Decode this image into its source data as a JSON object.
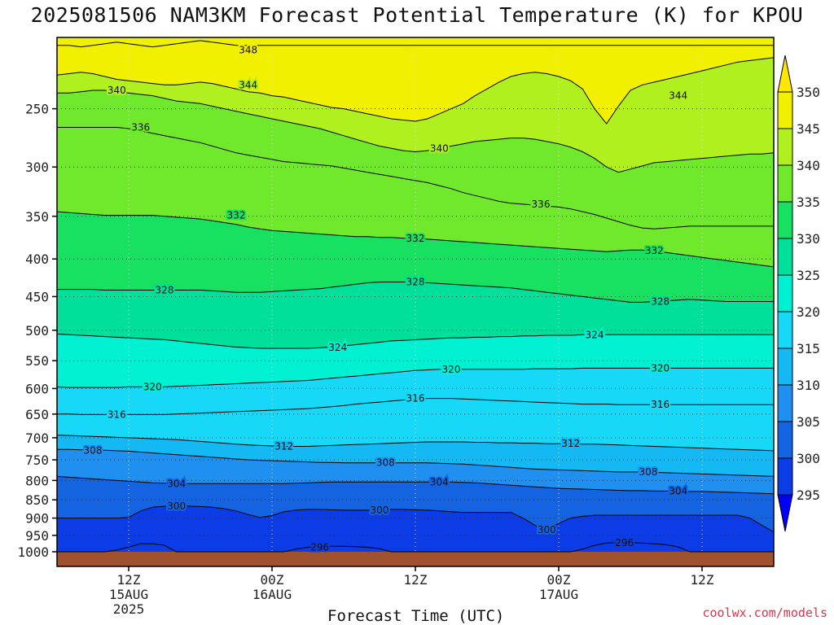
{
  "header": {
    "title": "2025081506 NAM3KM Forecast Potential Temperature (K) for KPOU"
  },
  "footer": {
    "credit": "coolwx.com/models"
  },
  "chart_data": {
    "type": "heatmap",
    "title": "2025081506 NAM3KM Forecast Potential Temperature (K) for KPOU",
    "xlabel": "Forecast Time (UTC)",
    "ylabel": "",
    "y_axis": {
      "scale": "log-pressure",
      "inverted": true,
      "range": [
        1000,
        200
      ],
      "ticks": [
        250,
        300,
        350,
        400,
        450,
        500,
        550,
        600,
        650,
        700,
        750,
        800,
        850,
        900,
        950,
        1000
      ]
    },
    "x_axis": {
      "range_hours": [
        0,
        60
      ],
      "ticks": [
        {
          "hour": 6,
          "label": "12Z",
          "sub1": "15AUG",
          "sub2": "2025"
        },
        {
          "hour": 18,
          "label": "00Z",
          "sub1": "16AUG",
          "sub2": ""
        },
        {
          "hour": 30,
          "label": "12Z",
          "sub1": "",
          "sub2": ""
        },
        {
          "hour": 42,
          "label": "00Z",
          "sub1": "17AUG",
          "sub2": ""
        },
        {
          "hour": 54,
          "label": "12Z",
          "sub1": "",
          "sub2": ""
        }
      ]
    },
    "colorbar": {
      "levels": [
        295,
        300,
        305,
        310,
        315,
        320,
        325,
        330,
        335,
        340,
        345,
        350
      ],
      "colors": [
        "#0000ff",
        "#0b3ce6",
        "#1464e2",
        "#1f8ff0",
        "#14b8f2",
        "#18d8f8",
        "#00f0d2",
        "#00e09a",
        "#18e060",
        "#70e82c",
        "#b0f01e",
        "#f0f000",
        "#ffe800"
      ]
    },
    "contour_labels": [
      {
        "value": 348,
        "hour": 16,
        "p": 208
      },
      {
        "value": 344,
        "hour": 16,
        "p": 232
      },
      {
        "value": 344,
        "hour": 52,
        "p": 240
      },
      {
        "value": 340,
        "hour": 5,
        "p": 236
      },
      {
        "value": 340,
        "hour": 32,
        "p": 283
      },
      {
        "value": 336,
        "hour": 7,
        "p": 265
      },
      {
        "value": 336,
        "hour": 40.5,
        "p": 337
      },
      {
        "value": 332,
        "hour": 15,
        "p": 349
      },
      {
        "value": 332,
        "hour": 30,
        "p": 375
      },
      {
        "value": 332,
        "hour": 50,
        "p": 390
      },
      {
        "value": 328,
        "hour": 9,
        "p": 441
      },
      {
        "value": 328,
        "hour": 30,
        "p": 430
      },
      {
        "value": 328,
        "hour": 50.5,
        "p": 457
      },
      {
        "value": 324,
        "hour": 23.5,
        "p": 528
      },
      {
        "value": 324,
        "hour": 45,
        "p": 507
      },
      {
        "value": 320,
        "hour": 8,
        "p": 597
      },
      {
        "value": 320,
        "hour": 33,
        "p": 565
      },
      {
        "value": 320,
        "hour": 50.5,
        "p": 563
      },
      {
        "value": 316,
        "hour": 5,
        "p": 651
      },
      {
        "value": 316,
        "hour": 30,
        "p": 619
      },
      {
        "value": 316,
        "hour": 50.5,
        "p": 631
      },
      {
        "value": 312,
        "hour": 19,
        "p": 719
      },
      {
        "value": 312,
        "hour": 43,
        "p": 713
      },
      {
        "value": 308,
        "hour": 3,
        "p": 728
      },
      {
        "value": 308,
        "hour": 27.5,
        "p": 757
      },
      {
        "value": 308,
        "hour": 49.5,
        "p": 779
      },
      {
        "value": 304,
        "hour": 10,
        "p": 808
      },
      {
        "value": 304,
        "hour": 32,
        "p": 804
      },
      {
        "value": 304,
        "hour": 52,
        "p": 827
      },
      {
        "value": 300,
        "hour": 10,
        "p": 867
      },
      {
        "value": 300,
        "hour": 27,
        "p": 878
      },
      {
        "value": 300,
        "hour": 41,
        "p": 933
      },
      {
        "value": 296,
        "hour": 22,
        "p": 986
      },
      {
        "value": 296,
        "hour": 47.5,
        "p": 972
      }
    ],
    "isotherm_profiles": [
      {
        "value": 348,
        "p": [
          205,
          205,
          206,
          205,
          204,
          203,
          204,
          205,
          206,
          205,
          204,
          203,
          202,
          203,
          204,
          205,
          205,
          205,
          205,
          205,
          205,
          205,
          205,
          205,
          205,
          205,
          205,
          205,
          205,
          205,
          205,
          205,
          205,
          205,
          205,
          205,
          205,
          205,
          205,
          205,
          205,
          205,
          205,
          205,
          205,
          205,
          205,
          205,
          205,
          205,
          205,
          205,
          205,
          205,
          205,
          205,
          205,
          205,
          205,
          205,
          205
        ]
      },
      {
        "value": 344,
        "p": [
          225,
          224,
          223,
          224,
          226,
          228,
          229,
          230,
          231,
          232,
          232,
          231,
          230,
          231,
          233,
          235,
          237,
          238,
          240,
          241,
          243,
          245,
          247,
          249,
          250,
          252,
          254,
          256,
          258,
          259,
          260,
          258,
          254,
          250,
          246,
          240,
          235,
          230,
          226,
          224,
          223,
          224,
          226,
          229,
          235,
          250,
          262,
          248,
          236,
          232,
          230,
          228,
          226,
          224,
          222,
          220,
          218,
          216,
          215,
          214,
          213
        ]
      },
      {
        "value": 340,
        "p": [
          238,
          238,
          237,
          236,
          236,
          237,
          238,
          239,
          240,
          242,
          244,
          245,
          246,
          248,
          250,
          252,
          254,
          256,
          258,
          260,
          262,
          264,
          266,
          269,
          272,
          275,
          278,
          281,
          283,
          285,
          286,
          285,
          283,
          281,
          279,
          277,
          276,
          275,
          274,
          274,
          275,
          277,
          279,
          282,
          286,
          292,
          300,
          305,
          302,
          299,
          296,
          295,
          294,
          293,
          292,
          291,
          290,
          289,
          288,
          288,
          287
        ]
      },
      {
        "value": 336,
        "p": [
          265,
          265,
          265,
          265,
          265,
          265,
          266,
          268,
          270,
          272,
          274,
          276,
          278,
          281,
          284,
          287,
          289,
          291,
          293,
          295,
          296,
          297,
          298,
          299,
          301,
          303,
          305,
          307,
          309,
          311,
          313,
          315,
          318,
          321,
          325,
          328,
          331,
          334,
          336,
          337,
          338,
          339,
          340,
          342,
          345,
          348,
          352,
          356,
          360,
          363,
          364,
          363,
          362,
          361,
          361,
          361,
          361,
          361,
          361,
          361,
          361
        ]
      },
      {
        "value": 332,
        "p": [
          345,
          346,
          347,
          348,
          349,
          349,
          349,
          349,
          349,
          350,
          351,
          352,
          353,
          355,
          357,
          359,
          362,
          364,
          366,
          367,
          368,
          369,
          370,
          371,
          372,
          373,
          373,
          374,
          374,
          375,
          375,
          376,
          377,
          378,
          379,
          380,
          381,
          382,
          383,
          384,
          385,
          386,
          387,
          388,
          389,
          390,
          391,
          390,
          389,
          389,
          390,
          392,
          394,
          396,
          398,
          400,
          402,
          404,
          406,
          408,
          410
        ]
      },
      {
        "value": 328,
        "p": [
          440,
          440,
          440,
          440,
          441,
          441,
          441,
          441,
          441,
          441,
          441,
          441,
          441,
          442,
          443,
          444,
          444,
          444,
          443,
          442,
          441,
          440,
          439,
          437,
          435,
          433,
          431,
          430,
          430,
          430,
          430,
          431,
          432,
          433,
          434,
          435,
          436,
          437,
          438,
          440,
          442,
          444,
          446,
          448,
          450,
          452,
          454,
          456,
          458,
          458,
          457,
          456,
          455,
          454,
          455,
          456,
          457,
          457,
          457,
          457,
          457
        ]
      },
      {
        "value": 324,
        "p": [
          506,
          507,
          508,
          509,
          510,
          511,
          512,
          513,
          514,
          515,
          517,
          519,
          521,
          523,
          525,
          527,
          528,
          529,
          529,
          529,
          529,
          529,
          528,
          527,
          525,
          523,
          521,
          519,
          517,
          516,
          515,
          514,
          513,
          512,
          512,
          511,
          511,
          510,
          510,
          509,
          509,
          508,
          508,
          508,
          507,
          507,
          507,
          507,
          507,
          507,
          507,
          507,
          507,
          507,
          507,
          507,
          507,
          507,
          507,
          507,
          507
        ]
      },
      {
        "value": 320,
        "p": [
          597,
          598,
          598,
          598,
          598,
          598,
          597,
          597,
          597,
          597,
          596,
          595,
          594,
          593,
          592,
          591,
          590,
          589,
          588,
          587,
          586,
          585,
          583,
          581,
          579,
          577,
          575,
          573,
          571,
          569,
          567,
          566,
          565,
          565,
          565,
          565,
          565,
          565,
          565,
          565,
          564,
          564,
          564,
          564,
          563,
          563,
          563,
          563,
          563,
          563,
          563,
          563,
          563,
          563,
          563,
          563,
          563,
          563,
          563,
          563,
          563
        ]
      },
      {
        "value": 316,
        "p": [
          650,
          650,
          651,
          651,
          651,
          651,
          651,
          651,
          651,
          651,
          650,
          649,
          648,
          647,
          646,
          645,
          644,
          643,
          642,
          641,
          640,
          639,
          637,
          635,
          633,
          630,
          628,
          626,
          624,
          622,
          620,
          619,
          619,
          619,
          620,
          621,
          622,
          623,
          624,
          625,
          626,
          627,
          628,
          629,
          630,
          630,
          630,
          631,
          631,
          631,
          631,
          631,
          631,
          631,
          631,
          631,
          631,
          631,
          631,
          631,
          631
        ]
      },
      {
        "value": 312,
        "p": [
          694,
          695,
          696,
          697,
          698,
          699,
          700,
          701,
          702,
          703,
          704,
          706,
          708,
          710,
          712,
          714,
          716,
          717,
          718,
          719,
          719,
          719,
          718,
          717,
          716,
          715,
          714,
          713,
          712,
          711,
          710,
          709,
          709,
          709,
          709,
          710,
          710,
          711,
          711,
          712,
          712,
          713,
          713,
          713,
          714,
          714,
          715,
          716,
          717,
          718,
          719,
          720,
          721,
          722,
          723,
          724,
          725,
          726,
          727,
          728,
          729
        ]
      },
      {
        "value": 308,
        "p": [
          726,
          726,
          727,
          727,
          728,
          729,
          730,
          732,
          734,
          736,
          738,
          740,
          742,
          744,
          746,
          748,
          750,
          751,
          752,
          753,
          754,
          755,
          756,
          756,
          757,
          757,
          757,
          757,
          757,
          757,
          757,
          757,
          758,
          759,
          760,
          762,
          764,
          766,
          768,
          770,
          772,
          773,
          774,
          775,
          776,
          777,
          778,
          779,
          779,
          779,
          780,
          781,
          782,
          783,
          784,
          785,
          786,
          787,
          788,
          789,
          790
        ]
      },
      {
        "value": 304,
        "p": [
          790,
          792,
          794,
          796,
          798,
          800,
          802,
          804,
          806,
          807,
          808,
          808,
          808,
          808,
          808,
          808,
          808,
          808,
          808,
          808,
          807,
          806,
          805,
          804,
          804,
          804,
          804,
          804,
          804,
          804,
          804,
          804,
          804,
          804,
          805,
          806,
          808,
          810,
          812,
          814,
          816,
          818,
          820,
          821,
          822,
          823,
          824,
          825,
          826,
          826,
          827,
          827,
          827,
          828,
          828,
          829,
          830,
          831,
          832,
          833,
          834
        ]
      },
      {
        "value": 300,
        "p": [
          900,
          900,
          900,
          900,
          900,
          900,
          898,
          880,
          870,
          867,
          867,
          867,
          868,
          870,
          874,
          880,
          890,
          898,
          893,
          882,
          878,
          876,
          876,
          877,
          878,
          878,
          878,
          877,
          876,
          876,
          877,
          878,
          880,
          882,
          884,
          884,
          884,
          884,
          884,
          900,
          920,
          933,
          915,
          900,
          895,
          892,
          892,
          892,
          892,
          892,
          892,
          892,
          892,
          892,
          892,
          892,
          892,
          892,
          900,
          920,
          940
        ]
      },
      {
        "value": 296,
        "p": [
          1000,
          1000,
          1000,
          1000,
          1000,
          995,
          985,
          975,
          975,
          980,
          1000,
          1000,
          1000,
          1000,
          1000,
          1000,
          1000,
          1000,
          1000,
          1000,
          992,
          986,
          984,
          983,
          983,
          984,
          986,
          990,
          1000,
          1000,
          1000,
          1000,
          1000,
          1000,
          1000,
          1000,
          1000,
          1000,
          1000,
          1000,
          1000,
          1000,
          1000,
          1000,
          992,
          980,
          973,
          972,
          972,
          973,
          975,
          978,
          985,
          1000,
          1000,
          1000,
          1000,
          1000,
          1000,
          1000,
          1000
        ]
      }
    ],
    "ground_color": "#a0522d",
    "grid": true
  }
}
